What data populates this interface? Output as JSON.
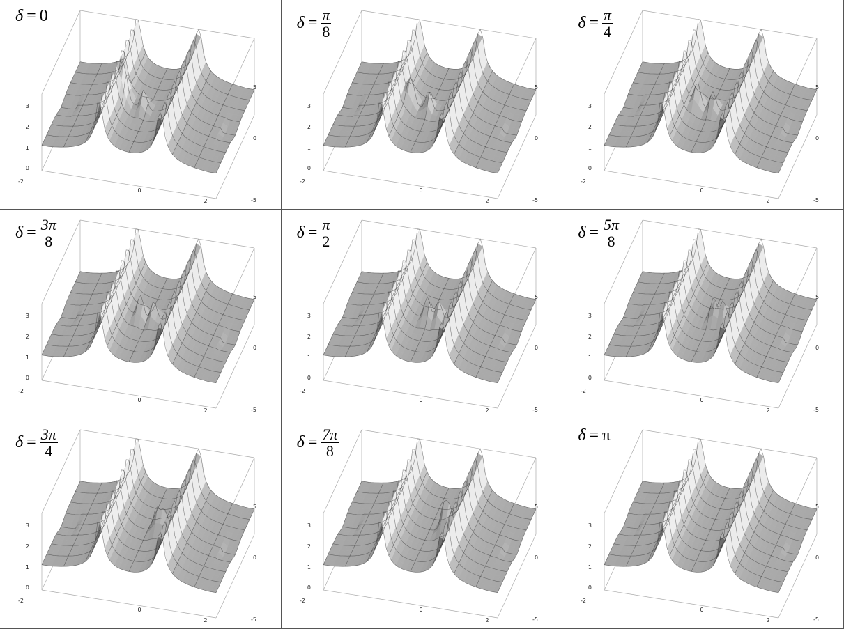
{
  "axes": {
    "x_ticks": [
      -2,
      0,
      2
    ],
    "y_ticks": [
      -5,
      0,
      5
    ],
    "z_ticks": [
      0,
      1,
      2,
      3
    ]
  },
  "panels": [
    {
      "symbol": "δ",
      "equals": "=",
      "value": "0"
    },
    {
      "symbol": "δ",
      "equals": "=",
      "numerator": "π",
      "denominator": "8"
    },
    {
      "symbol": "δ",
      "equals": "=",
      "numerator": "π",
      "denominator": "4"
    },
    {
      "symbol": "δ",
      "equals": "=",
      "numerator": "3π",
      "denominator": "8"
    },
    {
      "symbol": "δ",
      "equals": "=",
      "numerator": "π",
      "denominator": "2"
    },
    {
      "symbol": "δ",
      "equals": "=",
      "numerator": "5π",
      "denominator": "8"
    },
    {
      "symbol": "δ",
      "equals": "=",
      "numerator": "3π",
      "denominator": "4"
    },
    {
      "symbol": "δ",
      "equals": "=",
      "numerator": "7π",
      "denominator": "8"
    },
    {
      "symbol": "δ",
      "equals": "=",
      "value": "π"
    }
  ]
}
